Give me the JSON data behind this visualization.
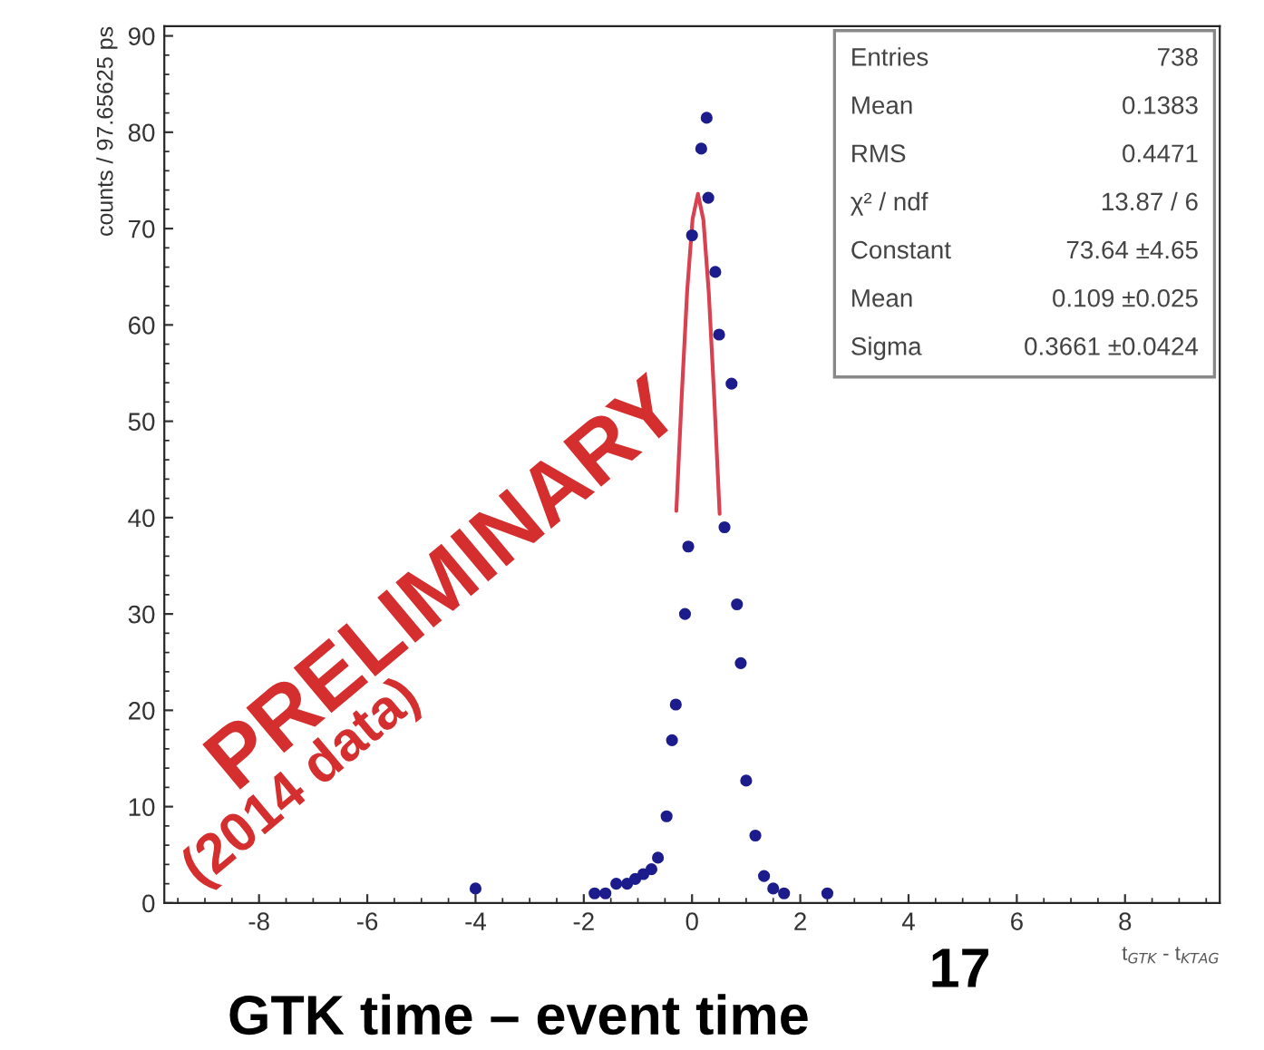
{
  "chart_data": {
    "type": "scatter",
    "ylabel": "counts / 97.65625 ps",
    "xlabel": "t$_{GTK}$ - t$_{KTAG}$",
    "xlim": [
      -9.75,
      9.75
    ],
    "ylim": [
      0,
      91
    ],
    "xticks": [
      -8,
      -6,
      -4,
      -2,
      0,
      2,
      4,
      6,
      8
    ],
    "yticks": [
      0,
      10,
      20,
      30,
      40,
      50,
      60,
      70,
      80,
      90
    ],
    "grid": false,
    "legend": false,
    "series": [
      {
        "marker": "circle",
        "color": "#1c1c8c",
        "x": [
          -4.0,
          -1.8,
          -1.6,
          -1.4,
          -1.2,
          -1.05,
          -0.9,
          -0.75,
          -0.63,
          -0.47,
          -0.37,
          -0.3,
          -0.13,
          -0.07,
          0.0,
          0.17,
          0.27,
          0.3,
          0.43,
          0.5,
          0.6,
          0.73,
          0.83,
          0.9,
          1.0,
          1.17,
          1.33,
          1.5,
          1.7,
          2.5
        ],
        "values": [
          1.5,
          1,
          1,
          2,
          2,
          2.5,
          3,
          3.5,
          4.7,
          9,
          16.9,
          20.6,
          30,
          37,
          69.3,
          78.3,
          81.5,
          73.2,
          65.5,
          59,
          39,
          53.9,
          31,
          24.9,
          12.7,
          7,
          2.8,
          1.5,
          1,
          1
        ]
      },
      {
        "type": "line",
        "color": "#d94050",
        "line_style": "solid",
        "x": [
          -0.29,
          -0.19,
          -0.09,
          0.01,
          0.109,
          0.21,
          0.31,
          0.41,
          0.51
        ],
        "values": [
          40.7,
          52.7,
          63.5,
          71.0,
          73.6,
          70.9,
          63.3,
          52.5,
          40.4
        ]
      }
    ],
    "annotations": [
      "PRELIMINARY",
      "(2014 data)",
      "GTK time – event time",
      "17",
      "Entries",
      "738",
      "Mean",
      "0.1383",
      "RMS",
      "0.4471",
      "χ² / ndf",
      "13.87 / 6",
      "Constant",
      "73.64 ±4.65",
      "Mean",
      "0.109 ±0.025",
      "Sigma",
      "0.3661 ±0.0424"
    ]
  }
}
